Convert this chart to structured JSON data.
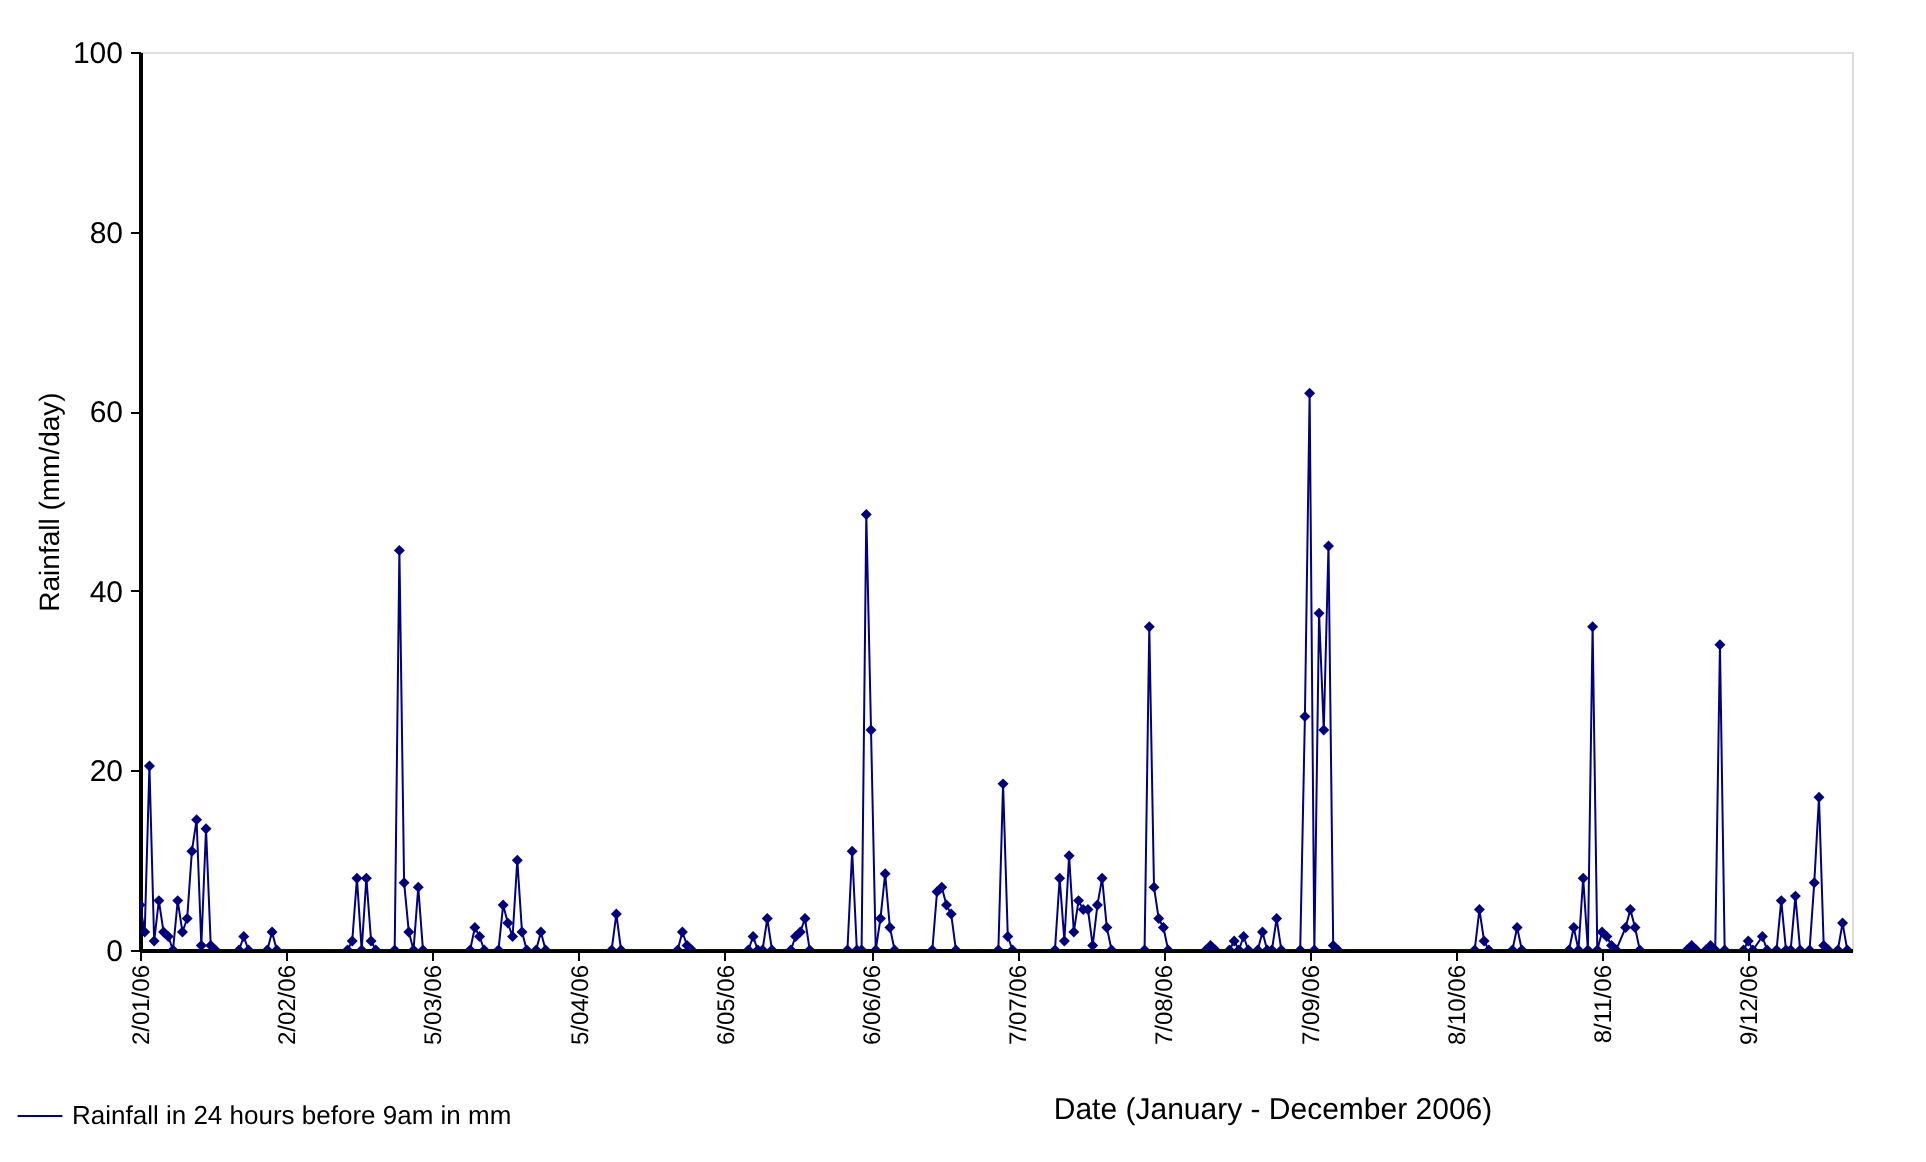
{
  "chart_data": {
    "type": "line",
    "xlabel": "Date (January - December 2006)",
    "ylabel": "Rainfall (mm/day)",
    "xlim": [
      "2006-01-02",
      "2006-12-31"
    ],
    "ylim": [
      0,
      100
    ],
    "yticks": [
      0,
      20,
      40,
      60,
      80,
      100
    ],
    "xticks": [
      {
        "value": "2006-01-02",
        "label": "2/01/06"
      },
      {
        "value": "2006-02-02",
        "label": "2/02/06"
      },
      {
        "value": "2006-03-05",
        "label": "5/03/06"
      },
      {
        "value": "2006-04-05",
        "label": "5/04/06"
      },
      {
        "value": "2006-05-06",
        "label": "6/05/06"
      },
      {
        "value": "2006-06-06",
        "label": "6/06/06"
      },
      {
        "value": "2006-07-07",
        "label": "7/07/06"
      },
      {
        "value": "2006-08-07",
        "label": "7/08/06"
      },
      {
        "value": "2006-09-07",
        "label": "7/09/06"
      },
      {
        "value": "2006-10-08",
        "label": "8/10/06"
      },
      {
        "value": "2006-11-08",
        "label": "8/11/06"
      },
      {
        "value": "2006-12-09",
        "label": "9/12/06"
      }
    ],
    "grid": false,
    "legend": "bottom left",
    "marker": "diamond",
    "line_style": "solid",
    "series": [
      {
        "name": "Rainfall in 24 hours before 9am in mm",
        "color": "#000080",
        "x": [
          "2006-01-02",
          "2006-01-03",
          "2006-01-04",
          "2006-01-05",
          "2006-01-06",
          "2006-01-07",
          "2006-01-08",
          "2006-01-09",
          "2006-01-10",
          "2006-01-11",
          "2006-01-12",
          "2006-01-13",
          "2006-01-14",
          "2006-01-15",
          "2006-01-16",
          "2006-01-17",
          "2006-01-18",
          "2006-01-23",
          "2006-01-24",
          "2006-01-25",
          "2006-01-29",
          "2006-01-30",
          "2006-01-31",
          "2006-02-15",
          "2006-02-16",
          "2006-02-17",
          "2006-02-18",
          "2006-02-19",
          "2006-02-20",
          "2006-02-21",
          "2006-02-25",
          "2006-02-26",
          "2006-02-27",
          "2006-02-28",
          "2006-03-01",
          "2006-03-02",
          "2006-03-03",
          "2006-03-13",
          "2006-03-14",
          "2006-03-15",
          "2006-03-16",
          "2006-03-19",
          "2006-03-20",
          "2006-03-21",
          "2006-03-22",
          "2006-03-23",
          "2006-03-24",
          "2006-03-25",
          "2006-03-27",
          "2006-03-28",
          "2006-03-29",
          "2006-04-12",
          "2006-04-13",
          "2006-04-14",
          "2006-04-26",
          "2006-04-27",
          "2006-04-28",
          "2006-04-29",
          "2006-05-11",
          "2006-05-12",
          "2006-05-13",
          "2006-05-14",
          "2006-05-15",
          "2006-05-16",
          "2006-05-20",
          "2006-05-21",
          "2006-05-22",
          "2006-05-23",
          "2006-05-24",
          "2006-06-01",
          "2006-06-02",
          "2006-06-03",
          "2006-06-04",
          "2006-06-05",
          "2006-06-06",
          "2006-06-07",
          "2006-06-08",
          "2006-06-09",
          "2006-06-10",
          "2006-06-11",
          "2006-06-19",
          "2006-06-20",
          "2006-06-21",
          "2006-06-22",
          "2006-06-23",
          "2006-06-24",
          "2006-07-03",
          "2006-07-04",
          "2006-07-05",
          "2006-07-06",
          "2006-07-15",
          "2006-07-16",
          "2006-07-17",
          "2006-07-18",
          "2006-07-19",
          "2006-07-20",
          "2006-07-21",
          "2006-07-22",
          "2006-07-23",
          "2006-07-24",
          "2006-07-25",
          "2006-07-26",
          "2006-07-27",
          "2006-08-03",
          "2006-08-04",
          "2006-08-05",
          "2006-08-06",
          "2006-08-07",
          "2006-08-08",
          "2006-08-16",
          "2006-08-17",
          "2006-08-18",
          "2006-08-21",
          "2006-08-22",
          "2006-08-23",
          "2006-08-24",
          "2006-08-25",
          "2006-08-27",
          "2006-08-28",
          "2006-08-29",
          "2006-08-30",
          "2006-08-31",
          "2006-09-01",
          "2006-09-05",
          "2006-09-06",
          "2006-09-07",
          "2006-09-08",
          "2006-09-09",
          "2006-09-10",
          "2006-09-11",
          "2006-09-12",
          "2006-09-13",
          "2006-10-12",
          "2006-10-13",
          "2006-10-14",
          "2006-10-15",
          "2006-10-20",
          "2006-10-21",
          "2006-10-22",
          "2006-11-01",
          "2006-11-02",
          "2006-11-03",
          "2006-11-04",
          "2006-11-05",
          "2006-11-06",
          "2006-11-07",
          "2006-11-08",
          "2006-11-09",
          "2006-11-10",
          "2006-11-11",
          "2006-11-13",
          "2006-11-14",
          "2006-11-15",
          "2006-11-16",
          "2006-11-26",
          "2006-11-27",
          "2006-11-28",
          "2006-11-30",
          "2006-12-01",
          "2006-12-02",
          "2006-12-03",
          "2006-12-04",
          "2006-12-08",
          "2006-12-09",
          "2006-12-10",
          "2006-12-12",
          "2006-12-13",
          "2006-12-15",
          "2006-12-16",
          "2006-12-17",
          "2006-12-18",
          "2006-12-19",
          "2006-12-20",
          "2006-12-22",
          "2006-12-23",
          "2006-12-24",
          "2006-12-25",
          "2006-12-26",
          "2006-12-28",
          "2006-12-29",
          "2006-12-30"
        ],
        "values": [
          5,
          2,
          20.5,
          1,
          5.5,
          2,
          1.5,
          0,
          5.5,
          2,
          3.5,
          11,
          14.5,
          0.5,
          13.5,
          0.5,
          0,
          0,
          1.5,
          0,
          0,
          2,
          0,
          0,
          1,
          8,
          0,
          8,
          1,
          0,
          0,
          44.5,
          7.5,
          2,
          0,
          7,
          0,
          0,
          2.5,
          1.5,
          0,
          0,
          5,
          3,
          1.5,
          10,
          2,
          0,
          0,
          2,
          0,
          0,
          4,
          0,
          0,
          2,
          0.5,
          0,
          0,
          1.5,
          0,
          0,
          3.5,
          0,
          0,
          1.5,
          2,
          3.5,
          0,
          0,
          11,
          0,
          0,
          48.5,
          24.5,
          0,
          3.5,
          8.5,
          2.5,
          0,
          0,
          6.5,
          7,
          5,
          4,
          0,
          0,
          18.5,
          1.5,
          0,
          0,
          8,
          1,
          10.5,
          2,
          5.5,
          4.5,
          4.5,
          0.5,
          5,
          8,
          2.5,
          0,
          0,
          36,
          7,
          3.5,
          2.5,
          0,
          0,
          0.5,
          0,
          0,
          1,
          0,
          1.5,
          0,
          0,
          2,
          0,
          0,
          3.5,
          0,
          0,
          26,
          62,
          0,
          37.5,
          24.5,
          45,
          0.5,
          0,
          0,
          4.5,
          1,
          0,
          0,
          2.5,
          0,
          0,
          2.5,
          0,
          8,
          0,
          36,
          0,
          2,
          1.5,
          0.5,
          0,
          2.5,
          4.5,
          2.5,
          0,
          0,
          0.5,
          0,
          0,
          0.5,
          0,
          34,
          0,
          0,
          1,
          0,
          1.5,
          0,
          0,
          5.5,
          0,
          0,
          6,
          0,
          0,
          7.5,
          17,
          0.5,
          0,
          0,
          3,
          0
        ]
      }
    ]
  }
}
